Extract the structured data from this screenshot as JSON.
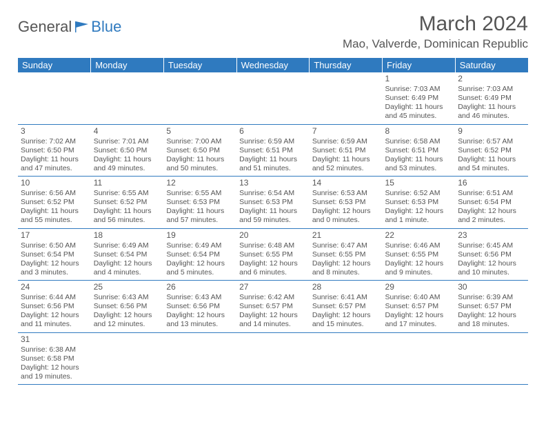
{
  "logo": {
    "general": "General",
    "blue": "Blue"
  },
  "title": "March 2024",
  "location": "Mao, Valverde, Dominican Republic",
  "day_headers": [
    "Sunday",
    "Monday",
    "Tuesday",
    "Wednesday",
    "Thursday",
    "Friday",
    "Saturday"
  ],
  "colors": {
    "header_bg": "#2f7abf",
    "header_fg": "#ffffff",
    "cell_border": "#2f7abf",
    "text": "#555555",
    "background": "#ffffff"
  },
  "typography": {
    "title_fontsize_pt": 22,
    "location_fontsize_pt": 13,
    "day_header_fontsize_pt": 10,
    "cell_fontsize_pt": 8
  },
  "weeks": [
    [
      null,
      null,
      null,
      null,
      null,
      {
        "day": "1",
        "sunrise": "Sunrise: 7:03 AM",
        "sunset": "Sunset: 6:49 PM",
        "daylight": "Daylight: 11 hours and 45 minutes."
      },
      {
        "day": "2",
        "sunrise": "Sunrise: 7:03 AM",
        "sunset": "Sunset: 6:49 PM",
        "daylight": "Daylight: 11 hours and 46 minutes."
      }
    ],
    [
      {
        "day": "3",
        "sunrise": "Sunrise: 7:02 AM",
        "sunset": "Sunset: 6:50 PM",
        "daylight": "Daylight: 11 hours and 47 minutes."
      },
      {
        "day": "4",
        "sunrise": "Sunrise: 7:01 AM",
        "sunset": "Sunset: 6:50 PM",
        "daylight": "Daylight: 11 hours and 49 minutes."
      },
      {
        "day": "5",
        "sunrise": "Sunrise: 7:00 AM",
        "sunset": "Sunset: 6:50 PM",
        "daylight": "Daylight: 11 hours and 50 minutes."
      },
      {
        "day": "6",
        "sunrise": "Sunrise: 6:59 AM",
        "sunset": "Sunset: 6:51 PM",
        "daylight": "Daylight: 11 hours and 51 minutes."
      },
      {
        "day": "7",
        "sunrise": "Sunrise: 6:59 AM",
        "sunset": "Sunset: 6:51 PM",
        "daylight": "Daylight: 11 hours and 52 minutes."
      },
      {
        "day": "8",
        "sunrise": "Sunrise: 6:58 AM",
        "sunset": "Sunset: 6:51 PM",
        "daylight": "Daylight: 11 hours and 53 minutes."
      },
      {
        "day": "9",
        "sunrise": "Sunrise: 6:57 AM",
        "sunset": "Sunset: 6:52 PM",
        "daylight": "Daylight: 11 hours and 54 minutes."
      }
    ],
    [
      {
        "day": "10",
        "sunrise": "Sunrise: 6:56 AM",
        "sunset": "Sunset: 6:52 PM",
        "daylight": "Daylight: 11 hours and 55 minutes."
      },
      {
        "day": "11",
        "sunrise": "Sunrise: 6:55 AM",
        "sunset": "Sunset: 6:52 PM",
        "daylight": "Daylight: 11 hours and 56 minutes."
      },
      {
        "day": "12",
        "sunrise": "Sunrise: 6:55 AM",
        "sunset": "Sunset: 6:53 PM",
        "daylight": "Daylight: 11 hours and 57 minutes."
      },
      {
        "day": "13",
        "sunrise": "Sunrise: 6:54 AM",
        "sunset": "Sunset: 6:53 PM",
        "daylight": "Daylight: 11 hours and 59 minutes."
      },
      {
        "day": "14",
        "sunrise": "Sunrise: 6:53 AM",
        "sunset": "Sunset: 6:53 PM",
        "daylight": "Daylight: 12 hours and 0 minutes."
      },
      {
        "day": "15",
        "sunrise": "Sunrise: 6:52 AM",
        "sunset": "Sunset: 6:53 PM",
        "daylight": "Daylight: 12 hours and 1 minute."
      },
      {
        "day": "16",
        "sunrise": "Sunrise: 6:51 AM",
        "sunset": "Sunset: 6:54 PM",
        "daylight": "Daylight: 12 hours and 2 minutes."
      }
    ],
    [
      {
        "day": "17",
        "sunrise": "Sunrise: 6:50 AM",
        "sunset": "Sunset: 6:54 PM",
        "daylight": "Daylight: 12 hours and 3 minutes."
      },
      {
        "day": "18",
        "sunrise": "Sunrise: 6:49 AM",
        "sunset": "Sunset: 6:54 PM",
        "daylight": "Daylight: 12 hours and 4 minutes."
      },
      {
        "day": "19",
        "sunrise": "Sunrise: 6:49 AM",
        "sunset": "Sunset: 6:54 PM",
        "daylight": "Daylight: 12 hours and 5 minutes."
      },
      {
        "day": "20",
        "sunrise": "Sunrise: 6:48 AM",
        "sunset": "Sunset: 6:55 PM",
        "daylight": "Daylight: 12 hours and 6 minutes."
      },
      {
        "day": "21",
        "sunrise": "Sunrise: 6:47 AM",
        "sunset": "Sunset: 6:55 PM",
        "daylight": "Daylight: 12 hours and 8 minutes."
      },
      {
        "day": "22",
        "sunrise": "Sunrise: 6:46 AM",
        "sunset": "Sunset: 6:55 PM",
        "daylight": "Daylight: 12 hours and 9 minutes."
      },
      {
        "day": "23",
        "sunrise": "Sunrise: 6:45 AM",
        "sunset": "Sunset: 6:56 PM",
        "daylight": "Daylight: 12 hours and 10 minutes."
      }
    ],
    [
      {
        "day": "24",
        "sunrise": "Sunrise: 6:44 AM",
        "sunset": "Sunset: 6:56 PM",
        "daylight": "Daylight: 12 hours and 11 minutes."
      },
      {
        "day": "25",
        "sunrise": "Sunrise: 6:43 AM",
        "sunset": "Sunset: 6:56 PM",
        "daylight": "Daylight: 12 hours and 12 minutes."
      },
      {
        "day": "26",
        "sunrise": "Sunrise: 6:43 AM",
        "sunset": "Sunset: 6:56 PM",
        "daylight": "Daylight: 12 hours and 13 minutes."
      },
      {
        "day": "27",
        "sunrise": "Sunrise: 6:42 AM",
        "sunset": "Sunset: 6:57 PM",
        "daylight": "Daylight: 12 hours and 14 minutes."
      },
      {
        "day": "28",
        "sunrise": "Sunrise: 6:41 AM",
        "sunset": "Sunset: 6:57 PM",
        "daylight": "Daylight: 12 hours and 15 minutes."
      },
      {
        "day": "29",
        "sunrise": "Sunrise: 6:40 AM",
        "sunset": "Sunset: 6:57 PM",
        "daylight": "Daylight: 12 hours and 17 minutes."
      },
      {
        "day": "30",
        "sunrise": "Sunrise: 6:39 AM",
        "sunset": "Sunset: 6:57 PM",
        "daylight": "Daylight: 12 hours and 18 minutes."
      }
    ],
    [
      {
        "day": "31",
        "sunrise": "Sunrise: 6:38 AM",
        "sunset": "Sunset: 6:58 PM",
        "daylight": "Daylight: 12 hours and 19 minutes."
      },
      null,
      null,
      null,
      null,
      null,
      null
    ]
  ]
}
